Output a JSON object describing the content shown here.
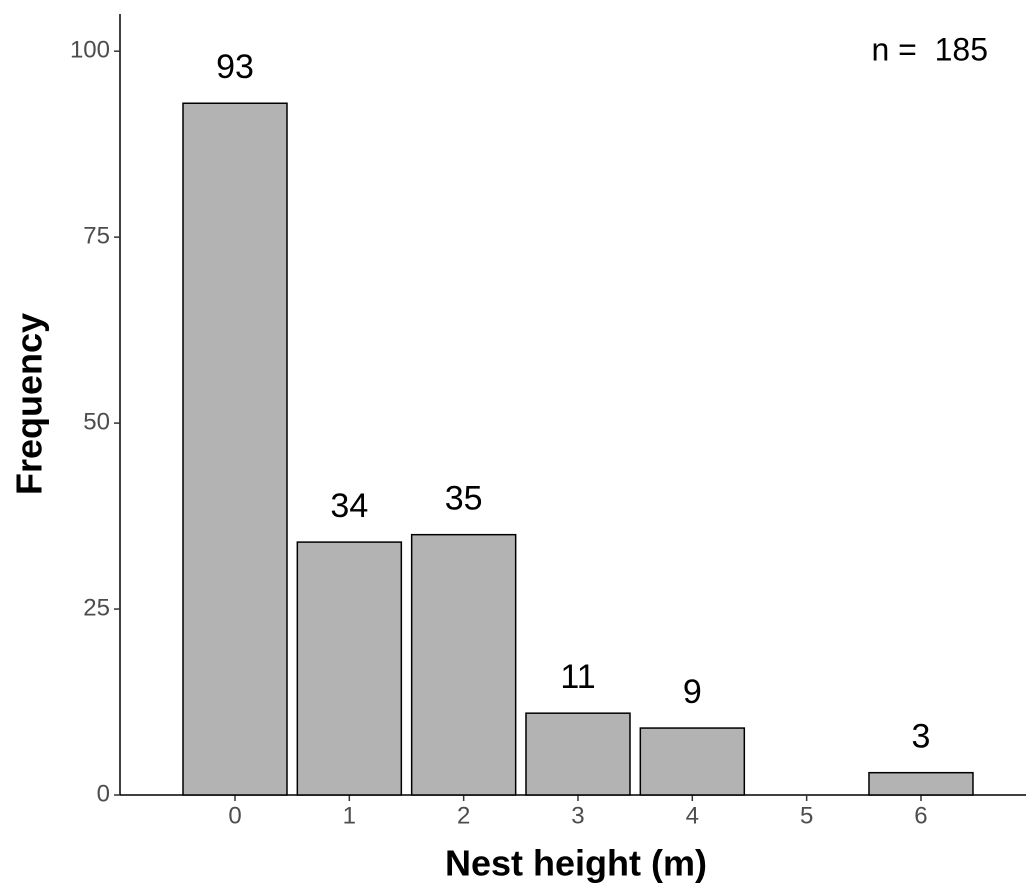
{
  "chart_data": {
    "type": "bar",
    "annotation": "n =  185",
    "x_label": "Nest height (m)",
    "y_label": "Frequency",
    "categories": [
      "0",
      "1",
      "2",
      "3",
      "4",
      "5",
      "6"
    ],
    "values": [
      93,
      34,
      35,
      11,
      9,
      null,
      3
    ],
    "color": "#b3b3b3",
    "ylim": [
      0,
      105
    ],
    "yticks": [
      0,
      25,
      50,
      75,
      100
    ],
    "grid": false
  }
}
